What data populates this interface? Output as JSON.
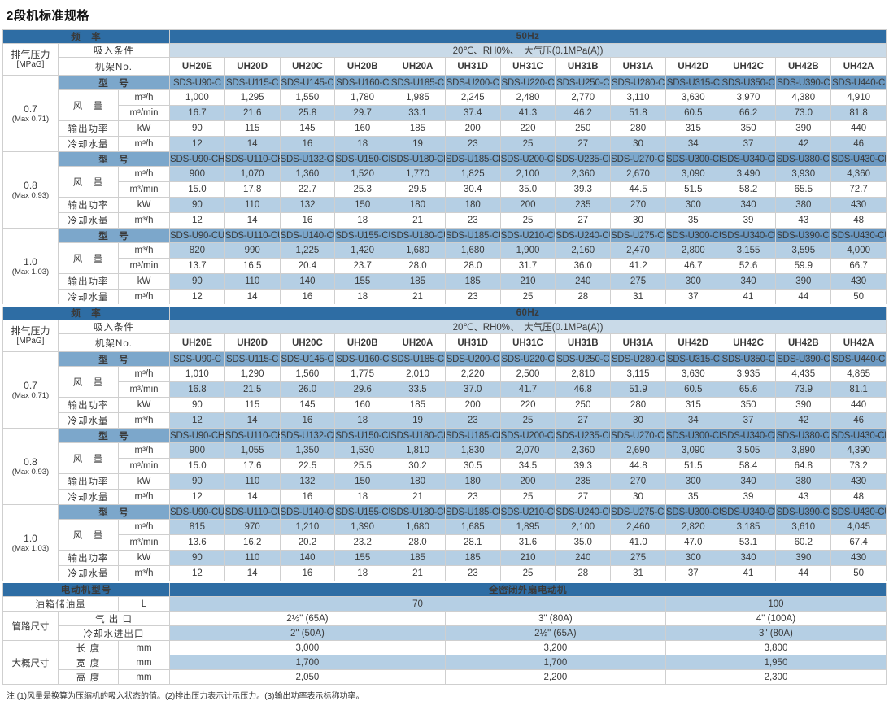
{
  "title": "2段机标准规格",
  "note": "注 (1)风量是换算为压缩机的吸入状态的值。(2)排出压力表示计示压力。(3)输出功率表示标称功率。",
  "colors": {
    "header_dark": "#2E6DA4",
    "model_blue": "#7CA7CB",
    "model_blue_dark": "#6B99C2",
    "row_light_blue": "#B5CFE4",
    "condition_band": "#C9DAE8"
  },
  "labels": {
    "frequency": "频　率",
    "pressure": "排气压力",
    "pressure_unit": "[MPaG]",
    "suction_condition": "吸入条件",
    "frame_no": "机架No.",
    "model": "型　号",
    "air_flow": "风　量",
    "output_power": "输出功率",
    "cooling_water": "冷却水量",
    "motor_model": "电动机型号",
    "motor_type": "全密闭外扇电动机",
    "oil_tank": "油箱储油量",
    "piping_size": "管路尺寸",
    "air_outlet": "气 出 口",
    "cooling_water_io": "冷却水进出口",
    "approx_size": "大概尺寸",
    "length": "长 度",
    "width": "宽 度",
    "height": "高 度",
    "unit_m3h": "m³/h",
    "unit_m3min": "m³/min",
    "unit_kw": "kW",
    "unit_l": "L",
    "unit_mm": "mm"
  },
  "frame_models": [
    "UH20E",
    "UH20D",
    "UH20C",
    "UH20B",
    "UH20A",
    "UH31D",
    "UH31C",
    "UH31B",
    "UH31A",
    "UH42D",
    "UH42C",
    "UH42B",
    "UH42A"
  ],
  "sections": [
    {
      "frequency": "50Hz",
      "condition": "20℃、RH0%、　大气压(0.1MPa(A))",
      "blocks": [
        {
          "pressure": "0.7",
          "pressure_max": "(Max 0.71)",
          "models": [
            "SDS-U90-C",
            "SDS-U115-C",
            "SDS-U145-C",
            "SDS-U160-C",
            "SDS-U185-C",
            "SDS-U200-C",
            "SDS-U220-C",
            "SDS-U250-C",
            "SDS-U280-C",
            "SDS-U315-C",
            "SDS-U350-C",
            "SDS-U390-C",
            "SDS-U440-C"
          ],
          "flow_m3h": [
            "1,000",
            "1,295",
            "1,550",
            "1,780",
            "1,985",
            "2,245",
            "2,480",
            "2,770",
            "3,110",
            "3,630",
            "3,970",
            "4,380",
            "4,910"
          ],
          "flow_m3min": [
            "16.7",
            "21.6",
            "25.8",
            "29.7",
            "33.1",
            "37.4",
            "41.3",
            "46.2",
            "51.8",
            "60.5",
            "66.2",
            "73.0",
            "81.8"
          ],
          "power_kw": [
            "90",
            "115",
            "145",
            "160",
            "185",
            "200",
            "220",
            "250",
            "280",
            "315",
            "350",
            "390",
            "440"
          ],
          "cooling_m3h": [
            "12",
            "14",
            "16",
            "18",
            "19",
            "23",
            "25",
            "27",
            "30",
            "34",
            "37",
            "42",
            "46"
          ],
          "shades": [
            "white",
            "light",
            "white",
            "light"
          ]
        },
        {
          "pressure": "0.8",
          "pressure_max": "(Max 0.93)",
          "models": [
            "SDS-U90-CH",
            "SDS-U110-CH",
            "SDS-U132-CH",
            "SDS-U150-CH",
            "SDS-U180-CH",
            "SDS-U185-CH",
            "SDS-U200-CH",
            "SDS-U235-CH",
            "SDS-U270-CH",
            "SDS-U300-CH",
            "SDS-U340-CH",
            "SDS-U380-CH",
            "SDS-U430-CH"
          ],
          "flow_m3h": [
            "900",
            "1,070",
            "1,360",
            "1,520",
            "1,770",
            "1,825",
            "2,100",
            "2,360",
            "2,670",
            "3,090",
            "3,490",
            "3,930",
            "4,360"
          ],
          "flow_m3min": [
            "15.0",
            "17.8",
            "22.7",
            "25.3",
            "29.5",
            "30.4",
            "35.0",
            "39.3",
            "44.5",
            "51.5",
            "58.2",
            "65.5",
            "72.7"
          ],
          "power_kw": [
            "90",
            "110",
            "132",
            "150",
            "180",
            "180",
            "200",
            "235",
            "270",
            "300",
            "340",
            "380",
            "430"
          ],
          "cooling_m3h": [
            "12",
            "14",
            "16",
            "18",
            "21",
            "23",
            "25",
            "27",
            "30",
            "35",
            "39",
            "43",
            "48"
          ],
          "shades": [
            "light",
            "white",
            "light",
            "white"
          ]
        },
        {
          "pressure": "1.0",
          "pressure_max": "(Max 1.03)",
          "models": [
            "SDS-U90-CU",
            "SDS-U110-CU",
            "SDS-U140-CU",
            "SDS-U155-CU",
            "SDS-U180-CU",
            "SDS-U185-CU",
            "SDS-U210-CU",
            "SDS-U240-CU",
            "SDS-U275-CU",
            "SDS-U300-CU",
            "SDS-U340-CU",
            "SDS-U390-CU",
            "SDS-U430-CU"
          ],
          "flow_m3h": [
            "820",
            "990",
            "1,225",
            "1,420",
            "1,680",
            "1,680",
            "1,900",
            "2,160",
            "2,470",
            "2,800",
            "3,155",
            "3,595",
            "4,000"
          ],
          "flow_m3min": [
            "13.7",
            "16.5",
            "20.4",
            "23.7",
            "28.0",
            "28.0",
            "31.7",
            "36.0",
            "41.2",
            "46.7",
            "52.6",
            "59.9",
            "66.7"
          ],
          "power_kw": [
            "90",
            "110",
            "140",
            "155",
            "185",
            "185",
            "210",
            "240",
            "275",
            "300",
            "340",
            "390",
            "430"
          ],
          "cooling_m3h": [
            "12",
            "14",
            "16",
            "18",
            "21",
            "23",
            "25",
            "28",
            "31",
            "37",
            "41",
            "44",
            "50"
          ],
          "shades": [
            "light",
            "white",
            "light",
            "white"
          ]
        }
      ]
    },
    {
      "frequency": "60Hz",
      "condition": "20℃、RH0%、　大气压(0.1MPa(A))",
      "blocks": [
        {
          "pressure": "0.7",
          "pressure_max": "(Max 0.71)",
          "models": [
            "SDS-U90-C",
            "SDS-U115-C",
            "SDS-U145-C",
            "SDS-U160-C",
            "SDS-U185-C",
            "SDS-U200-C",
            "SDS-U220-C",
            "SDS-U250-C",
            "SDS-U280-C",
            "SDS-U315-C",
            "SDS-U350-C",
            "SDS-U390-C",
            "SDS-U440-C"
          ],
          "flow_m3h": [
            "1,010",
            "1,290",
            "1,560",
            "1,775",
            "2,010",
            "2,220",
            "2,500",
            "2,810",
            "3,115",
            "3,630",
            "3,935",
            "4,435",
            "4,865"
          ],
          "flow_m3min": [
            "16.8",
            "21.5",
            "26.0",
            "29.6",
            "33.5",
            "37.0",
            "41.7",
            "46.8",
            "51.9",
            "60.5",
            "65.6",
            "73.9",
            "81.1"
          ],
          "power_kw": [
            "90",
            "115",
            "145",
            "160",
            "185",
            "200",
            "220",
            "250",
            "280",
            "315",
            "350",
            "390",
            "440"
          ],
          "cooling_m3h": [
            "12",
            "14",
            "16",
            "18",
            "19",
            "23",
            "25",
            "27",
            "30",
            "34",
            "37",
            "42",
            "46"
          ],
          "shades": [
            "white",
            "light",
            "white",
            "light"
          ]
        },
        {
          "pressure": "0.8",
          "pressure_max": "(Max 0.93)",
          "models": [
            "SDS-U90-CH",
            "SDS-U110-CH",
            "SDS-U132-CH",
            "SDS-U150-CH",
            "SDS-U180-CH",
            "SDS-U185-CH",
            "SDS-U200-CH",
            "SDS-U235-CH",
            "SDS-U270-CH",
            "SDS-U300-CH",
            "SDS-U340-CH",
            "SDS-U380-CH",
            "SDS-U430-CH"
          ],
          "flow_m3h": [
            "900",
            "1,055",
            "1,350",
            "1,530",
            "1,810",
            "1,830",
            "2,070",
            "2,360",
            "2,690",
            "3,090",
            "3,505",
            "3,890",
            "4,390"
          ],
          "flow_m3min": [
            "15.0",
            "17.6",
            "22.5",
            "25.5",
            "30.2",
            "30.5",
            "34.5",
            "39.3",
            "44.8",
            "51.5",
            "58.4",
            "64.8",
            "73.2"
          ],
          "power_kw": [
            "90",
            "110",
            "132",
            "150",
            "180",
            "180",
            "200",
            "235",
            "270",
            "300",
            "340",
            "380",
            "430"
          ],
          "cooling_m3h": [
            "12",
            "14",
            "16",
            "18",
            "21",
            "23",
            "25",
            "27",
            "30",
            "35",
            "39",
            "43",
            "48"
          ],
          "shades": [
            "light",
            "white",
            "light",
            "white"
          ]
        },
        {
          "pressure": "1.0",
          "pressure_max": "(Max 1.03)",
          "models": [
            "SDS-U90-CU",
            "SDS-U110-CU",
            "SDS-U140-CU",
            "SDS-U155-CU",
            "SDS-U180-CU",
            "SDS-U185-CU",
            "SDS-U210-CU",
            "SDS-U240-CU",
            "SDS-U275-CU",
            "SDS-U300-CU",
            "SDS-U340-CU",
            "SDS-U390-CU",
            "SDS-U430-CU"
          ],
          "flow_m3h": [
            "815",
            "970",
            "1,210",
            "1,390",
            "1,680",
            "1,685",
            "1,895",
            "2,100",
            "2,460",
            "2,820",
            "3,185",
            "3,610",
            "4,045"
          ],
          "flow_m3min": [
            "13.6",
            "16.2",
            "20.2",
            "23.2",
            "28.0",
            "28.1",
            "31.6",
            "35.0",
            "41.0",
            "47.0",
            "53.1",
            "60.2",
            "67.4"
          ],
          "power_kw": [
            "90",
            "110",
            "140",
            "155",
            "185",
            "185",
            "210",
            "240",
            "275",
            "300",
            "340",
            "390",
            "430"
          ],
          "cooling_m3h": [
            "12",
            "14",
            "16",
            "18",
            "21",
            "23",
            "25",
            "28",
            "31",
            "37",
            "41",
            "44",
            "50"
          ],
          "shades": [
            "light",
            "white",
            "light",
            "white"
          ]
        }
      ]
    }
  ],
  "bottom": {
    "motor_type_value": "全密闭外扇电动机",
    "oil_tank": {
      "unit": "L",
      "values": [
        "70",
        "100"
      ],
      "spans": [
        9,
        4
      ],
      "shade": "light"
    },
    "piping_rows": [
      {
        "label": "气 出 口",
        "values": [
          "2½\" (65A)",
          "3\" (80A)",
          "4\" (100A)"
        ],
        "spans": [
          5,
          4,
          4
        ],
        "shade": "white"
      },
      {
        "label": "冷却水进出口",
        "values": [
          "2\" (50A)",
          "2½\" (65A)",
          "3\" (80A)"
        ],
        "spans": [
          5,
          4,
          4
        ],
        "shade": "light"
      }
    ],
    "dim_rows": [
      {
        "label": "长 度",
        "unit": "mm",
        "values": [
          "3,000",
          "3,200",
          "3,800"
        ],
        "spans": [
          5,
          4,
          4
        ],
        "shade": "white"
      },
      {
        "label": "宽 度",
        "unit": "mm",
        "values": [
          "1,700",
          "1,700",
          "1,950"
        ],
        "spans": [
          5,
          4,
          4
        ],
        "shade": "light"
      },
      {
        "label": "高 度",
        "unit": "mm",
        "values": [
          "2,050",
          "2,200",
          "2,300"
        ],
        "spans": [
          5,
          4,
          4
        ],
        "shade": "white"
      }
    ]
  }
}
